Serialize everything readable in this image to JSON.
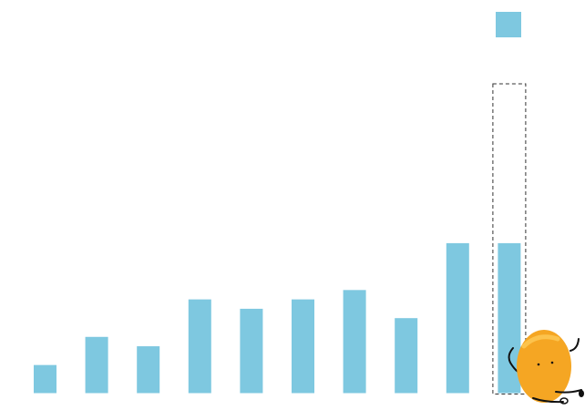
{
  "chart_data": {
    "type": "bar",
    "values": [
      3,
      6,
      5,
      10,
      9,
      10,
      11,
      8,
      16,
      16
    ],
    "color": "#7ec8e0",
    "ylim": [
      0,
      33
    ],
    "legend": "top-right",
    "highlight": 9
  }
}
